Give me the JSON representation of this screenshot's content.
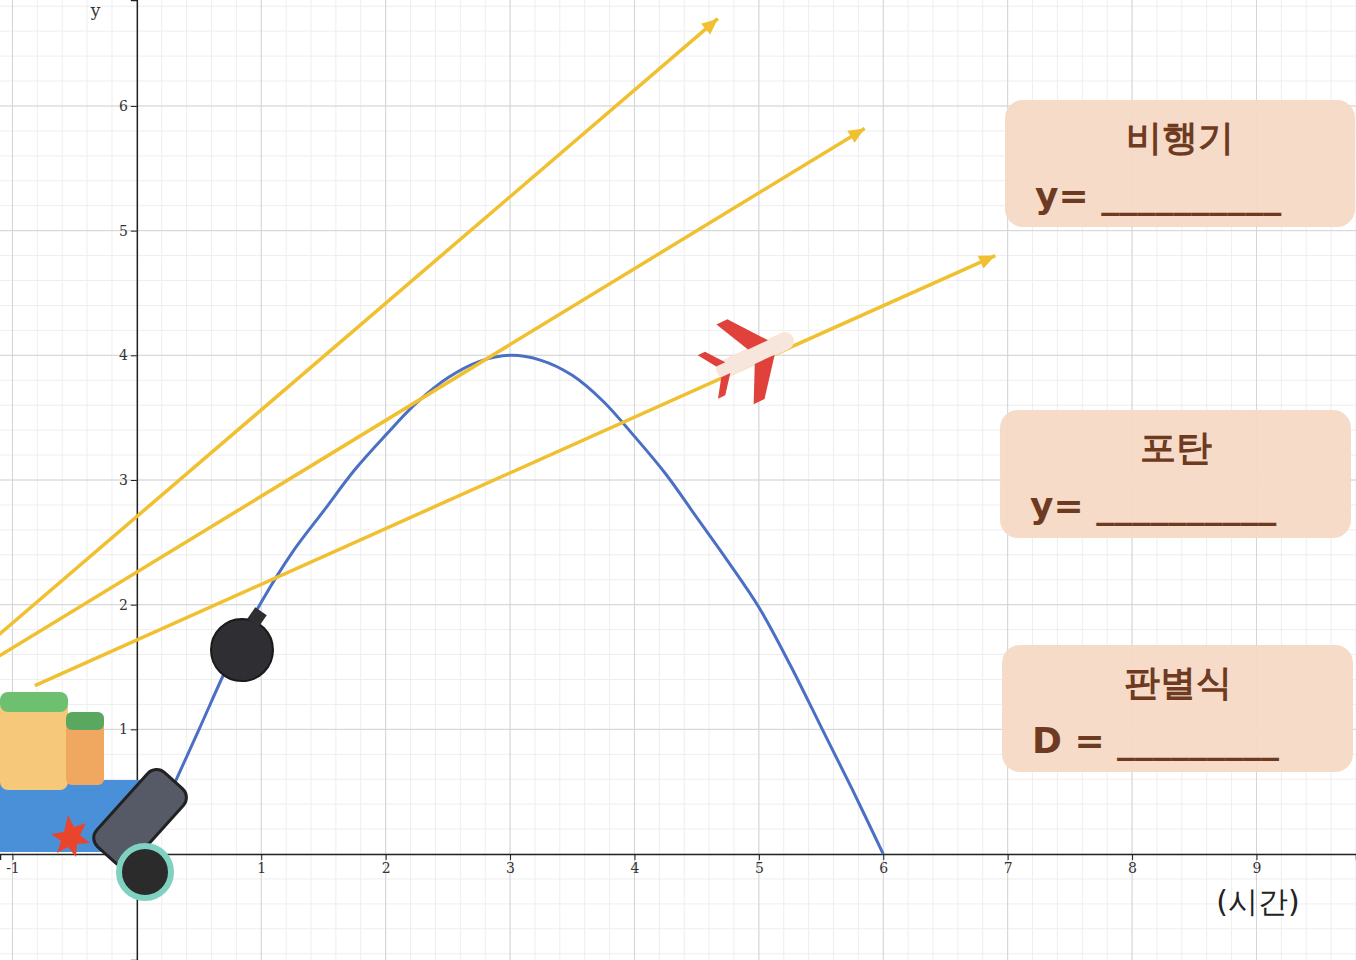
{
  "chart_data": {
    "type": "line",
    "x_label": "(시간)",
    "y_label": "y",
    "xlim": [
      -1.1,
      9.8
    ],
    "ylim": [
      -0.85,
      6.85
    ],
    "xticks": [
      -1,
      1,
      2,
      3,
      4,
      5,
      6,
      7,
      8,
      9
    ],
    "yticks": [
      1,
      2,
      3,
      4,
      5,
      6
    ],
    "grid": true,
    "series": [
      {
        "type": "curve",
        "color": "#4a6fc4",
        "x": [
          0.25,
          0.5,
          0.75,
          1,
          1.25,
          1.5,
          1.75,
          2,
          2.25,
          2.5,
          2.75,
          3,
          3.25,
          3.5,
          3.75,
          4,
          4.25,
          4.5,
          4.75,
          5,
          5.25,
          5.5,
          5.75,
          6
        ],
        "values": [
          0.45,
          1.0,
          1.55,
          2.02,
          2.42,
          2.75,
          3.08,
          3.36,
          3.62,
          3.82,
          3.95,
          4.0,
          3.96,
          3.84,
          3.63,
          3.35,
          3.05,
          2.7,
          2.35,
          1.98,
          1.52,
          1.02,
          0.52,
          0.0
        ]
      },
      {
        "type": "arrow",
        "color": "#f0c030",
        "x": [
          -0.82,
          6.9
        ],
        "values": [
          1.35,
          4.8
        ]
      },
      {
        "type": "arrow",
        "color": "#f0c030",
        "x": [
          -1.12,
          5.85
        ],
        "values": [
          1.58,
          5.82
        ]
      },
      {
        "type": "arrow",
        "color": "#f0c030",
        "x": [
          -1.12,
          4.67
        ],
        "values": [
          1.75,
          6.7
        ]
      }
    ],
    "annotations": [
      {
        "title": "비행기",
        "text": "y= __________"
      },
      {
        "title": "포탄",
        "text": "y= __________"
      },
      {
        "title": "판별식",
        "text": "D = _________"
      }
    ]
  }
}
